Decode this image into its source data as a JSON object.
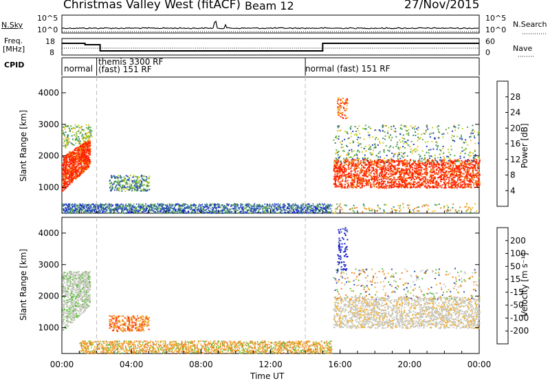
{
  "header": {
    "title": "Christmas Valley West (fitACF)",
    "beam": "Beam 12",
    "date": "27/Nov/2015"
  },
  "strip_nsky": {
    "left_label": "N.Sky",
    "right_label": "N.Search",
    "ticks_left": [
      "10^5",
      "10^0"
    ],
    "ticks_right": [
      "10^5",
      "10^0"
    ]
  },
  "strip_freq": {
    "left_label_1": "Freq.",
    "left_label_2": "[MHz]",
    "right_label": "Nave",
    "ticks_left": [
      "18",
      "8"
    ],
    "ticks_right": [
      "60",
      "0"
    ]
  },
  "cpid": {
    "label": "CPID",
    "segments": [
      {
        "start_hr": 0.0,
        "text1": "normal",
        "text2": ""
      },
      {
        "start_hr": 2.0,
        "text1": "themis 3300 RF",
        "text2": "(fast) 151 RF"
      },
      {
        "start_hr": 14.0,
        "text1": "normal (fast) 151 RF",
        "text2": ""
      }
    ]
  },
  "colors": {
    "power_scale": [
      "#1010e0",
      "#2040c0",
      "#2e6e9e",
      "#3a8a6a",
      "#5cac3c",
      "#b8d020",
      "#f0c020",
      "#f08010",
      "#ff2000"
    ],
    "velocity_scale": [
      "#1010d0",
      "#3050b0",
      "#309060",
      "#60c040",
      "#c8c8c0",
      "#f0b030",
      "#f08020",
      "#ff3010",
      "#ff0000"
    ]
  },
  "chart_data": [
    {
      "type": "heatmap",
      "name": "power",
      "ylabel": "Slant Range [km]",
      "yticks": [
        "1000",
        "2000",
        "3000",
        "4000"
      ],
      "colorbar_label": "Power [dB]",
      "colorbar_ticks": [
        "4",
        "8",
        "12",
        "16",
        "20",
        "24",
        "28"
      ],
      "x_range_hr": [
        0,
        24
      ],
      "y_range_km": [
        180,
        4500
      ]
    },
    {
      "type": "heatmap",
      "name": "velocity",
      "ylabel": "Slant Range [km]",
      "yticks": [
        "1000",
        "2000",
        "3000",
        "4000"
      ],
      "colorbar_label": "Velocity [m s⁻¹]",
      "colorbar_ticks": [
        "200",
        "100",
        "50",
        "15",
        "-15",
        "-50",
        "-100",
        "-200"
      ],
      "x_range_hr": [
        0,
        24
      ],
      "y_range_km": [
        180,
        4500
      ]
    }
  ],
  "xaxis": {
    "label": "Time UT",
    "ticks": [
      "00:00",
      "04:00",
      "08:00",
      "12:00",
      "16:00",
      "20:00",
      "00:00"
    ]
  }
}
